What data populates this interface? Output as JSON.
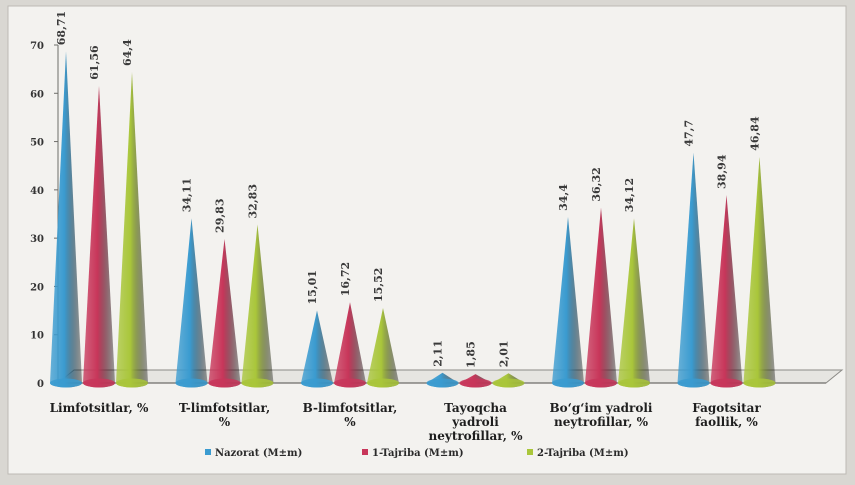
{
  "chart_data": {
    "type": "bar",
    "title": "",
    "xlabel": "",
    "ylabel": "",
    "ylim": [
      0,
      70
    ],
    "yticks": [
      0,
      10,
      20,
      30,
      40,
      50,
      60,
      70
    ],
    "grid": false,
    "legend_position": "bottom",
    "categories": [
      [
        "Limfotsitlar, %"
      ],
      [
        "T-limfotsitlar,",
        "%"
      ],
      [
        "B-limfotsitlar,",
        "%"
      ],
      [
        "Tayoqcha",
        "yadroli",
        "neytrofillar, %"
      ],
      [
        "Bo‘g‘im yadroli",
        "neytrofillar, %"
      ],
      [
        "Fagotsitar",
        "faollik, %"
      ]
    ],
    "series": [
      {
        "name": "Nazorat (M±m)",
        "color": "#3a9bd0",
        "values": [
          68.71,
          34.11,
          15.01,
          2.11,
          34.4,
          47.7
        ],
        "labels": [
          "68,71",
          "34,11",
          "15,01",
          "2,11",
          "34,4",
          "47,7"
        ]
      },
      {
        "name": "1-Tajriba (M±m)",
        "color": "#c8365a",
        "values": [
          61.56,
          29.83,
          16.72,
          1.85,
          36.32,
          38.94
        ],
        "labels": [
          "61,56",
          "29,83",
          "16,72",
          "1,85",
          "36,32",
          "38,94"
        ]
      },
      {
        "name": "2-Tajriba (M±m)",
        "color": "#a9c63a",
        "values": [
          64.4,
          32.83,
          15.52,
          2.01,
          34.12,
          46.84
        ],
        "labels": [
          "64,4",
          "32,83",
          "15,52",
          "2,01",
          "34,12",
          "46,84"
        ]
      }
    ]
  }
}
